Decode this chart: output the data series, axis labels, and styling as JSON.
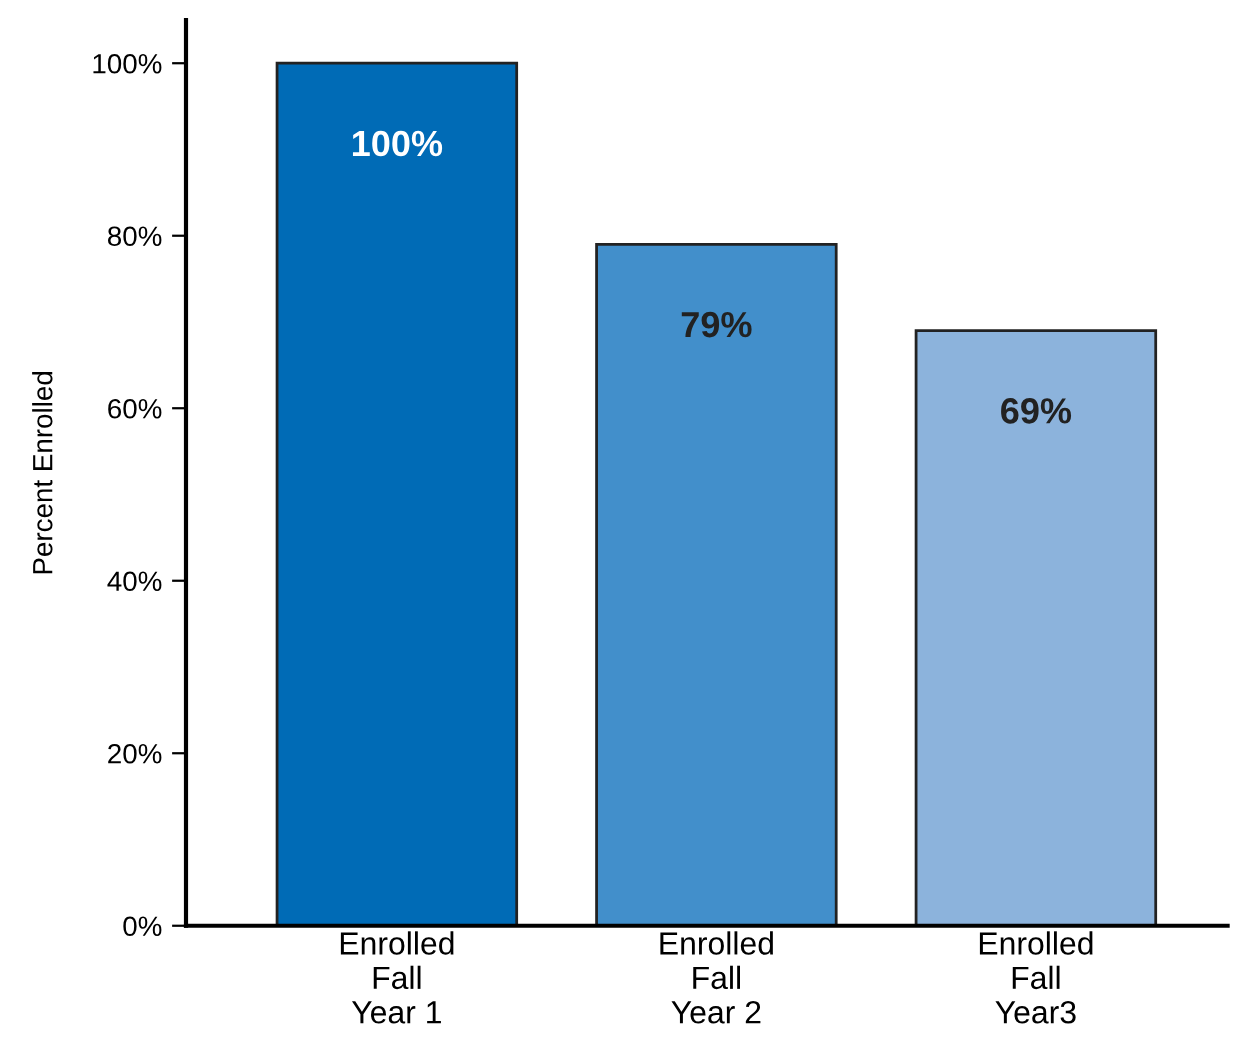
{
  "chart_data": {
    "type": "bar",
    "ylabel": "Percent Enrolled",
    "categories": [
      "Enrolled\nFall\nYear 1",
      "Enrolled\nFall\nYear 2",
      "Enrolled\nFall\nYear3"
    ],
    "values": [
      100,
      79,
      69
    ],
    "colors": [
      "#006bb6",
      "#428fcb",
      "#8cb3dc"
    ],
    "value_labels": [
      "100%",
      "79%",
      "69%"
    ],
    "ylim": [
      0,
      105
    ],
    "yticks": [
      {
        "value": 0,
        "label": "0%"
      },
      {
        "value": 20,
        "label": "20%"
      },
      {
        "value": 40,
        "label": "40%"
      },
      {
        "value": 60,
        "label": "60%"
      },
      {
        "value": 80,
        "label": "80%"
      },
      {
        "value": 100,
        "label": "100%"
      }
    ],
    "grid": false,
    "legend": false
  }
}
